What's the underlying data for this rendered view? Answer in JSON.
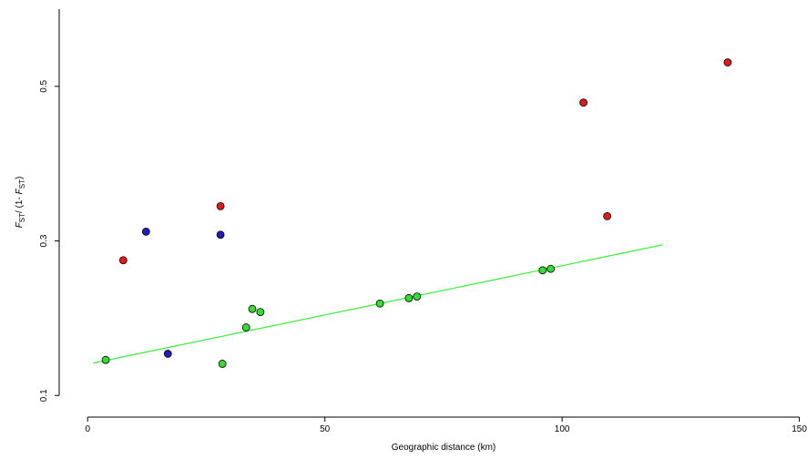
{
  "chart_data": {
    "type": "scatter",
    "x_label": "Geographic distance (km)",
    "y_label": [
      "F",
      "ST",
      "/ (1- ",
      "F",
      "ST",
      ")"
    ],
    "xlim": [
      -6,
      152
    ],
    "ylim": [
      0.072,
      0.6
    ],
    "xticks": [
      0,
      50,
      100,
      150
    ],
    "yticks": [
      0.1,
      0.3,
      0.5
    ],
    "series": [
      {
        "color": "#e31a1c",
        "x": [
          7.5,
          28,
          104.5,
          109.5,
          134.9
        ],
        "values": [
          0.275,
          0.345,
          0.479,
          0.332,
          0.531
        ]
      },
      {
        "color": "#1f1fbf",
        "x": [
          12.3,
          28,
          16.9
        ],
        "values": [
          0.312,
          0.308,
          0.154
        ]
      },
      {
        "color": "#33dd33",
        "x": [
          3.8,
          28.4,
          33.4,
          34.7,
          36.4,
          61.6,
          67.7,
          69.4,
          95.9,
          97.6
        ],
        "values": [
          0.146,
          0.141,
          0.188,
          0.212,
          0.208,
          0.219,
          0.226,
          0.228,
          0.262,
          0.264
        ]
      }
    ],
    "fit_line": {
      "color": "#33ee33",
      "x": [
        1.2,
        121.2
      ],
      "values": [
        0.142,
        0.295
      ]
    }
  }
}
